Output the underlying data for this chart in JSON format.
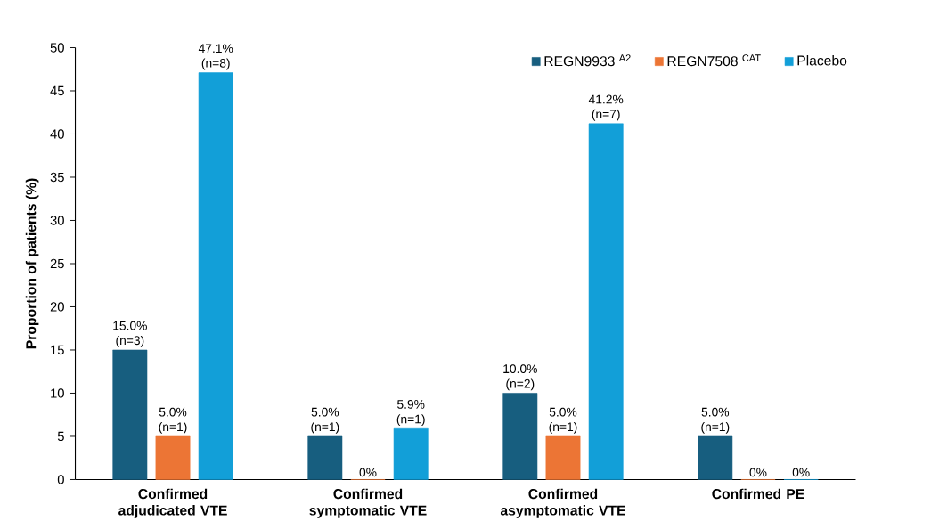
{
  "chart_data": {
    "type": "bar",
    "ylabel": "Proportion of patients (%)",
    "categories": [
      "Confirmed adjudicated VTE",
      "Confirmed symptomatic VTE",
      "Confirmed asymptomatic VTE",
      "Confirmed PE"
    ],
    "series": [
      {
        "name": "REGN9933 $^{A2}$",
        "color": "#175e7f",
        "values": [
          15.0,
          5.0,
          10.0,
          5.0
        ],
        "value_labels": [
          "15.0% (n=3)",
          "5.0% (n=1)",
          "10.0% (n=2)",
          "5.0% (n=1)"
        ]
      },
      {
        "name": "REGN7508 $^{CAT}$",
        "color": "#ec7535",
        "values": [
          5.0,
          0,
          5.0,
          0
        ],
        "value_labels": [
          "5.0% (n=1)",
          "0%",
          "5.0% (n=1)",
          "0%"
        ]
      },
      {
        "name": "Placebo",
        "color": "#129fd8",
        "values": [
          47.1,
          5.9,
          41.2,
          0
        ],
        "value_labels": [
          "47.1% (n=8)",
          "5.9% (n=1)",
          "41.2% (n=7)",
          "0%"
        ]
      }
    ],
    "ylim": [
      0,
      50
    ],
    "yticks": [
      0,
      5,
      10,
      15,
      20,
      25,
      30,
      35,
      40,
      45,
      50
    ],
    "grid": false,
    "legend": "top right"
  }
}
